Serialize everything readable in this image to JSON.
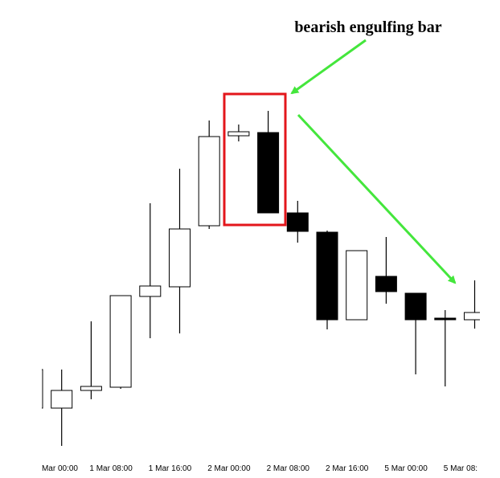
{
  "chart_data": {
    "type": "candlestick",
    "title": "bearish engulfing bar",
    "categories": [
      "Mar 00:00",
      null,
      "1 Mar 08:00",
      null,
      "1 Mar 16:00",
      null,
      "2 Mar 00:00",
      null,
      "2 Mar 08:00",
      null,
      "2 Mar 16:00",
      null,
      "5 Mar 00:00",
      null,
      "5 Mar 08:",
      null
    ],
    "open": [
      92,
      92,
      114,
      118,
      231,
      243,
      319,
      431,
      435,
      335,
      311,
      202,
      256,
      235,
      204,
      202
    ],
    "high": [
      140,
      140,
      200,
      232,
      347,
      390,
      450,
      445,
      462,
      350,
      313,
      288,
      305,
      235,
      214,
      251
    ],
    "low": [
      92,
      45,
      103,
      116,
      179,
      185,
      315,
      424,
      335,
      298,
      190,
      202,
      222,
      134,
      119,
      191
    ],
    "close": [
      140,
      114,
      119,
      232,
      244,
      315,
      430,
      436,
      335,
      312,
      202,
      288,
      237,
      202,
      202,
      211
    ],
    "ylim": [
      0,
      600
    ],
    "up_color": "#ffffff",
    "down_color": "#000000",
    "highlight_color": "#e3161b",
    "arrow_color": "#44e63c"
  }
}
